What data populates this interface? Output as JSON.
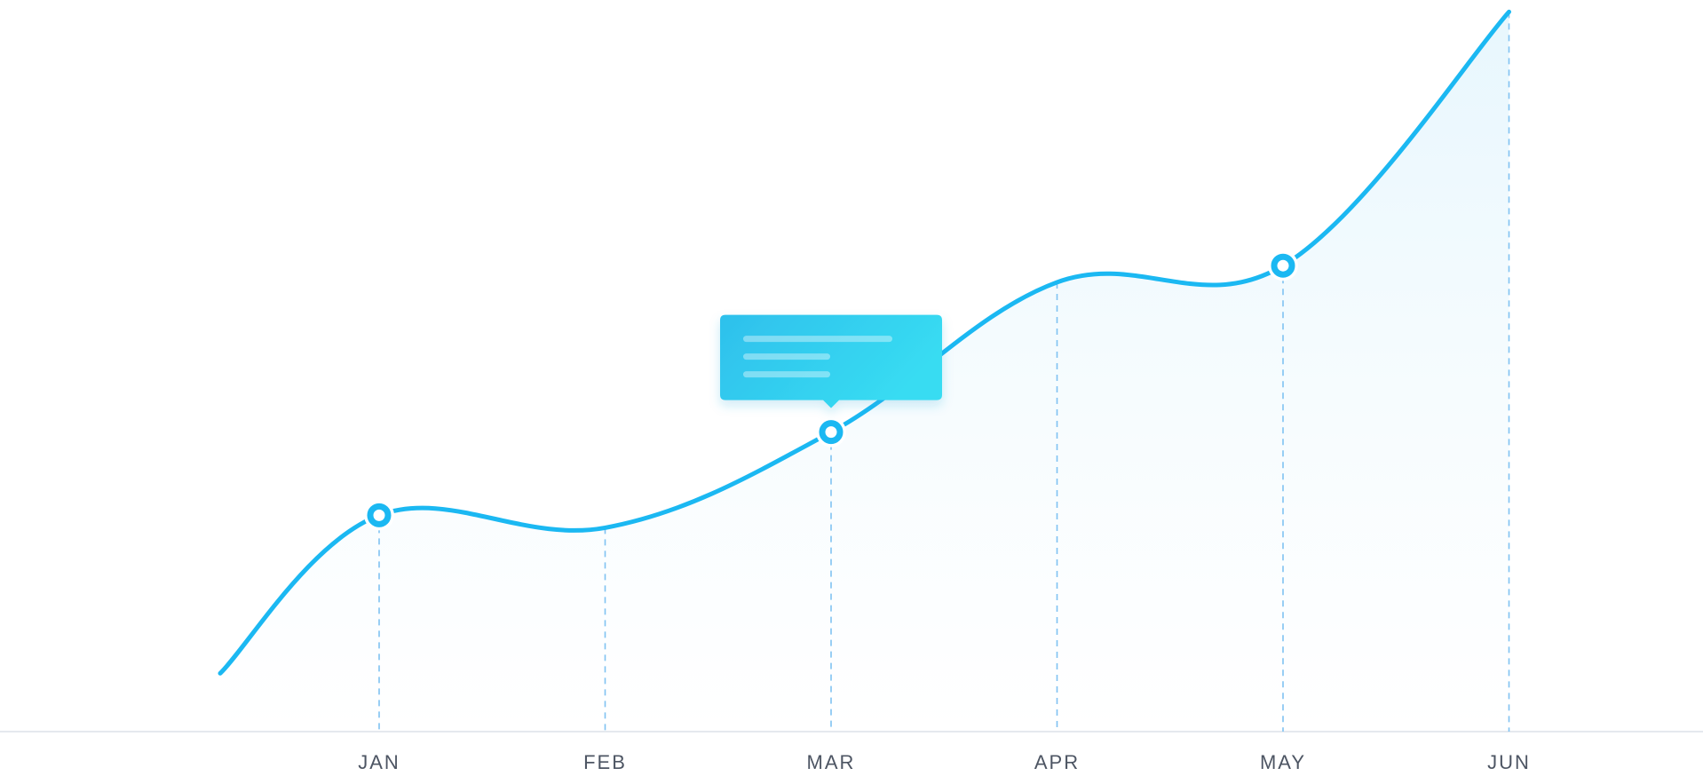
{
  "chart_data": {
    "type": "area",
    "categories": [
      "JAN",
      "FEB",
      "MAR",
      "APR",
      "MAY",
      "JUN"
    ],
    "values": [
      52,
      49,
      72,
      108,
      112,
      173
    ],
    "start_value": 14,
    "highlighted_points": [
      "JAN",
      "MAR",
      "MAY"
    ],
    "tooltip_at": "MAR",
    "ylim": [
      0,
      175
    ],
    "grid": "vertical dashed",
    "title": "",
    "xlabel": "",
    "ylabel": ""
  },
  "colors": {
    "line": "#1bb8f2",
    "fill": "#e6f6fd",
    "grid": "#7fc2f2",
    "axis": "#e5e9ee",
    "label": "#4d5563",
    "tooltip_start": "#2ec0ec",
    "tooltip_end": "#38dcf2"
  }
}
